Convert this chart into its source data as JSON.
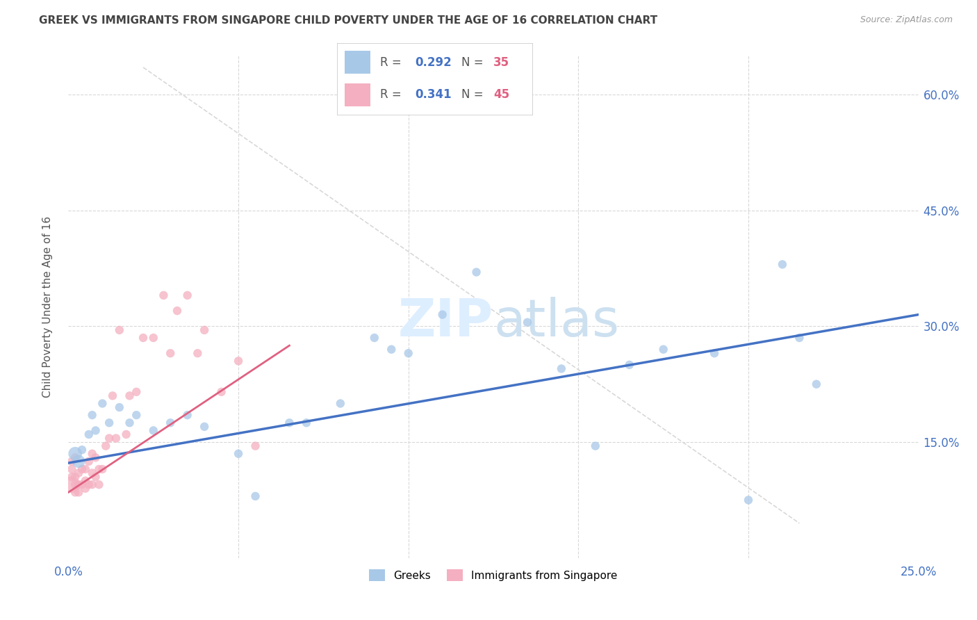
{
  "title": "GREEK VS IMMIGRANTS FROM SINGAPORE CHILD POVERTY UNDER THE AGE OF 16 CORRELATION CHART",
  "source": "Source: ZipAtlas.com",
  "ylabel": "Child Poverty Under the Age of 16",
  "xlim": [
    0.0,
    0.25
  ],
  "ylim": [
    0.0,
    0.65
  ],
  "blue_R": 0.292,
  "blue_N": 35,
  "pink_R": 0.341,
  "pink_N": 45,
  "blue_color": "#a8c8e8",
  "pink_color": "#f4afc0",
  "blue_line_color": "#4472c4",
  "pink_line_color": "#e06080",
  "background_color": "#ffffff",
  "grid_color": "#d8d8d8",
  "axis_label_color": "#4472c4",
  "title_color": "#444444",
  "blues_x": [
    0.002,
    0.003,
    0.004,
    0.006,
    0.007,
    0.008,
    0.01,
    0.012,
    0.015,
    0.018,
    0.02,
    0.025,
    0.03,
    0.035,
    0.04,
    0.05,
    0.055,
    0.065,
    0.07,
    0.08,
    0.09,
    0.095,
    0.1,
    0.11,
    0.12,
    0.135,
    0.145,
    0.155,
    0.165,
    0.175,
    0.19,
    0.2,
    0.21,
    0.215,
    0.22
  ],
  "blues_y": [
    0.135,
    0.125,
    0.14,
    0.16,
    0.185,
    0.165,
    0.2,
    0.175,
    0.195,
    0.175,
    0.185,
    0.165,
    0.175,
    0.185,
    0.17,
    0.135,
    0.08,
    0.175,
    0.175,
    0.2,
    0.285,
    0.27,
    0.265,
    0.315,
    0.37,
    0.305,
    0.245,
    0.145,
    0.25,
    0.27,
    0.265,
    0.075,
    0.38,
    0.285,
    0.225
  ],
  "blues_size": [
    90,
    90,
    90,
    90,
    90,
    90,
    90,
    90,
    90,
    90,
    90,
    90,
    90,
    90,
    90,
    90,
    90,
    90,
    90,
    90,
    90,
    90,
    90,
    90,
    90,
    90,
    90,
    90,
    90,
    90,
    90,
    90,
    90,
    90,
    90
  ],
  "blues_size_special": [
    [
      0,
      200
    ],
    [
      1,
      180
    ]
  ],
  "pinks_x": [
    0.001,
    0.001,
    0.001,
    0.001,
    0.002,
    0.002,
    0.002,
    0.002,
    0.003,
    0.003,
    0.003,
    0.004,
    0.004,
    0.005,
    0.005,
    0.005,
    0.006,
    0.006,
    0.007,
    0.007,
    0.007,
    0.008,
    0.008,
    0.009,
    0.009,
    0.01,
    0.011,
    0.012,
    0.013,
    0.014,
    0.015,
    0.017,
    0.018,
    0.02,
    0.022,
    0.025,
    0.028,
    0.03,
    0.032,
    0.035,
    0.038,
    0.04,
    0.045,
    0.05,
    0.055
  ],
  "pinks_y": [
    0.095,
    0.105,
    0.115,
    0.125,
    0.085,
    0.095,
    0.105,
    0.13,
    0.085,
    0.095,
    0.11,
    0.095,
    0.115,
    0.09,
    0.1,
    0.115,
    0.095,
    0.125,
    0.095,
    0.11,
    0.135,
    0.105,
    0.13,
    0.095,
    0.115,
    0.115,
    0.145,
    0.155,
    0.21,
    0.155,
    0.295,
    0.16,
    0.21,
    0.215,
    0.285,
    0.285,
    0.34,
    0.265,
    0.32,
    0.34,
    0.265,
    0.295,
    0.215,
    0.255,
    0.145
  ],
  "pinks_size": [
    90,
    90,
    90,
    90,
    90,
    90,
    90,
    90,
    90,
    90,
    90,
    90,
    90,
    90,
    90,
    90,
    90,
    90,
    90,
    90,
    90,
    90,
    90,
    90,
    90,
    90,
    90,
    90,
    90,
    90,
    90,
    90,
    90,
    90,
    90,
    90,
    90,
    90,
    90,
    90,
    90,
    90,
    90,
    90,
    90
  ],
  "pinks_size_special": [
    [
      0,
      300
    ]
  ],
  "blue_line_x": [
    0.0,
    0.25
  ],
  "blue_line_y": [
    0.123,
    0.315
  ],
  "pink_line_x": [
    0.0,
    0.065
  ],
  "pink_line_y": [
    0.085,
    0.275
  ],
  "diag_line_x": [
    0.022,
    0.215
  ],
  "diag_line_y": [
    0.635,
    0.045
  ]
}
